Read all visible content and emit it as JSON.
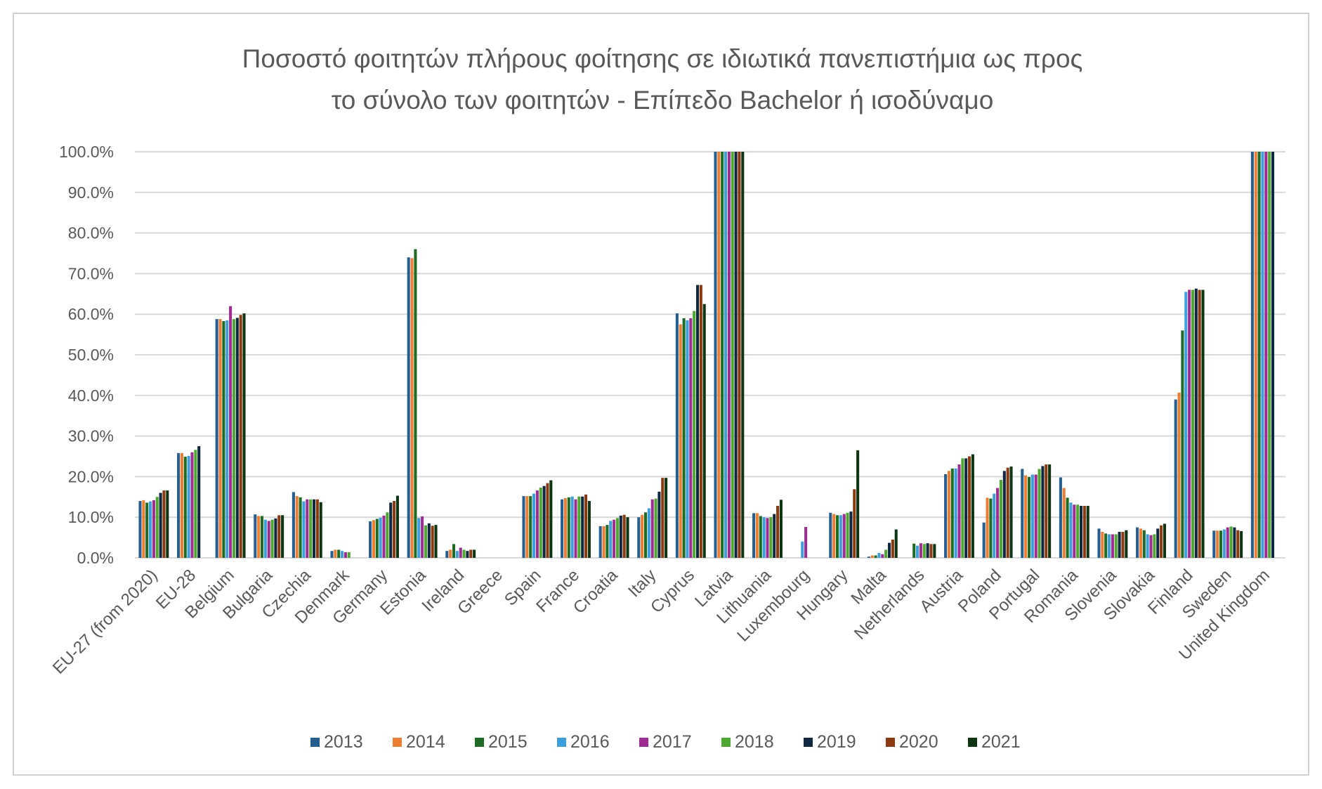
{
  "chart_data": {
    "type": "bar",
    "title": [
      "Ποσοστό φοιτητών πλήρους φοίτησης σε ιδιωτικά πανεπιστήμια ως προς",
      "το σύνολο των φοιτητών - Επίπεδο Bachelor ή ισοδύναμο"
    ],
    "xlabel": "",
    "ylabel": "",
    "ylim": [
      0,
      100
    ],
    "yticks": [
      "0.0%",
      "10.0%",
      "20.0%",
      "30.0%",
      "40.0%",
      "50.0%",
      "60.0%",
      "70.0%",
      "80.0%",
      "90.0%",
      "100.0%"
    ],
    "grid": true,
    "legend_position": "bottom",
    "categories": [
      "EU-27 (from 2020)",
      "EU-28",
      "Belgium",
      "Bulgaria",
      "Czechia",
      "Denmark",
      "Germany",
      "Estonia",
      "Ireland",
      "Greece",
      "Spain",
      "France",
      "Croatia",
      "Italy",
      "Cyprus",
      "Latvia",
      "Lithuania",
      "Luxembourg",
      "Hungary",
      "Malta",
      "Netherlands",
      "Austria",
      "Poland",
      "Portugal",
      "Romania",
      "Slovenia",
      "Slovakia",
      "Finland",
      "Sweden",
      "United Kingdom"
    ],
    "series": [
      {
        "name": "2013",
        "color": "#255E91",
        "values": [
          14.0,
          25.8,
          58.8,
          10.7,
          16.2,
          1.7,
          9.0,
          74.0,
          1.7,
          null,
          15.2,
          14.4,
          7.8,
          10.0,
          60.2,
          100,
          11.0,
          null,
          11.1,
          0.3,
          null,
          20.6,
          8.7,
          21.9,
          19.8,
          7.2,
          7.5,
          39.0,
          6.7,
          100
        ]
      },
      {
        "name": "2014",
        "color": "#ED7D31",
        "values": [
          14.2,
          25.8,
          58.8,
          10.3,
          15.2,
          2.0,
          9.3,
          73.8,
          2.0,
          null,
          15.2,
          14.7,
          7.8,
          10.6,
          57.5,
          100,
          11.0,
          null,
          10.8,
          0.6,
          null,
          21.4,
          14.8,
          20.3,
          17.2,
          6.4,
          7.2,
          40.7,
          6.7,
          100
        ]
      },
      {
        "name": "2015",
        "color": "#1E6B24",
        "values": [
          13.6,
          24.9,
          58.3,
          10.3,
          14.9,
          2.0,
          9.6,
          76.0,
          3.4,
          null,
          15.2,
          14.9,
          8.1,
          11.2,
          59.0,
          100,
          10.3,
          null,
          10.5,
          0.6,
          3.5,
          22.0,
          14.6,
          19.9,
          14.8,
          6.0,
          6.8,
          56.0,
          6.7,
          100
        ]
      },
      {
        "name": "2016",
        "color": "#3A9FDB",
        "values": [
          13.9,
          25.1,
          58.5,
          9.4,
          13.9,
          1.7,
          9.9,
          9.8,
          1.7,
          null,
          15.8,
          15.1,
          9.1,
          12.2,
          58.5,
          100,
          10.0,
          4.0,
          10.5,
          1.2,
          3.0,
          22.0,
          15.8,
          20.5,
          13.6,
          5.8,
          5.8,
          65.5,
          7.0,
          100
        ]
      },
      {
        "name": "2017",
        "color": "#A02B93",
        "values": [
          14.2,
          26.0,
          62.0,
          9.1,
          14.4,
          1.4,
          10.4,
          10.2,
          2.5,
          null,
          16.6,
          14.4,
          9.4,
          14.4,
          59.0,
          100,
          9.8,
          7.6,
          10.8,
          0.9,
          3.6,
          23.0,
          17.2,
          20.5,
          13.1,
          5.8,
          5.6,
          66.0,
          7.5,
          100
        ]
      },
      {
        "name": "2018",
        "color": "#4EA72E",
        "values": [
          15.0,
          26.6,
          58.8,
          9.4,
          14.4,
          1.4,
          11.2,
          8.0,
          2.0,
          null,
          17.3,
          15.1,
          9.8,
          14.6,
          60.8,
          100,
          10.0,
          null,
          11.1,
          2.0,
          3.4,
          24.5,
          19.2,
          21.9,
          13.1,
          5.8,
          5.8,
          66.0,
          7.7,
          100
        ]
      },
      {
        "name": "2019",
        "color": "#0E2841",
        "values": [
          16.0,
          27.5,
          59.1,
          9.7,
          14.4,
          null,
          13.6,
          8.5,
          1.7,
          null,
          17.7,
          15.1,
          10.4,
          16.3,
          67.2,
          100,
          10.8,
          null,
          11.4,
          3.7,
          3.6,
          24.5,
          21.4,
          22.6,
          12.8,
          6.4,
          7.2,
          66.3,
          7.5,
          100
        ]
      },
      {
        "name": "2020",
        "color": "#8B3A0F",
        "values": [
          16.6,
          null,
          59.8,
          10.5,
          14.4,
          null,
          14.0,
          7.9,
          2.0,
          null,
          18.4,
          15.6,
          10.6,
          19.7,
          67.2,
          100,
          12.8,
          null,
          16.9,
          4.5,
          3.4,
          25.0,
          22.2,
          23.0,
          12.8,
          6.4,
          8.0,
          66.0,
          6.8,
          null
        ]
      },
      {
        "name": "2021",
        "color": "#0D3512",
        "values": [
          16.6,
          null,
          60.2,
          10.5,
          13.7,
          null,
          15.3,
          8.1,
          2.0,
          null,
          19.1,
          14.0,
          10.0,
          19.7,
          62.5,
          100,
          14.3,
          null,
          26.5,
          7.0,
          3.4,
          25.5,
          22.5,
          23.0,
          12.8,
          6.8,
          8.4,
          66.0,
          6.6,
          null
        ]
      }
    ]
  }
}
